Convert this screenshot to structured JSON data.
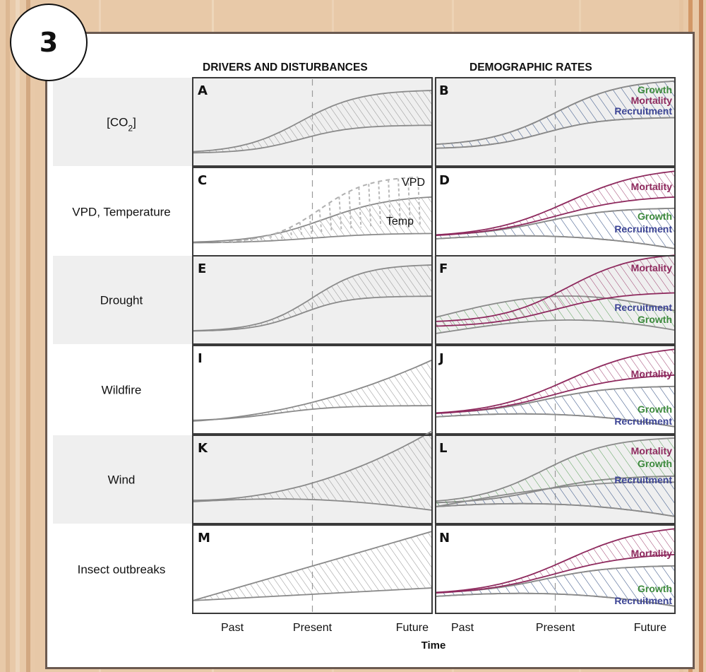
{
  "badge": "3",
  "headers": {
    "left": "DRIVERS AND DISTURBANCES",
    "right": "DEMOGRAPHIC RATES"
  },
  "rows": [
    {
      "label_html": "[CO<tspan baseline-shift=\"sub\" font-size=\"12\">2</tspan>]",
      "left": "A",
      "right": "B"
    },
    {
      "label": "VPD, Temperature",
      "left": "C",
      "right": "D"
    },
    {
      "label": "Drought",
      "left": "E",
      "right": "F"
    },
    {
      "label": "Wildfire",
      "left": "I",
      "right": "J"
    },
    {
      "label": "Wind",
      "left": "K",
      "right": "L"
    },
    {
      "label": "Insect outbreaks",
      "left": "M",
      "right": "N"
    }
  ],
  "panel_labels": {
    "B": [
      "Growth",
      "Mortality",
      "Recruitment"
    ],
    "C": [
      "VPD",
      "Temp"
    ],
    "D": [
      "Mortality",
      "Growth",
      "Recruitment"
    ],
    "F": [
      "Mortality",
      "Recruitment",
      "Growth"
    ],
    "J": [
      "Mortality",
      "Growth",
      "Recruitment"
    ],
    "L": [
      "Mortality",
      "Growth",
      "Recruitment"
    ],
    "N": [
      "Mortality",
      "Growth",
      "Recruitment"
    ]
  },
  "ticks": [
    "Past",
    "Present",
    "Future"
  ],
  "axis_title": "Time",
  "colors": {
    "growth": "#3d8a3d",
    "mortality": "#8e2a5e",
    "recruitment": "#3d4595",
    "row_shade": "#efefef",
    "band": "#8a8a8a"
  }
}
